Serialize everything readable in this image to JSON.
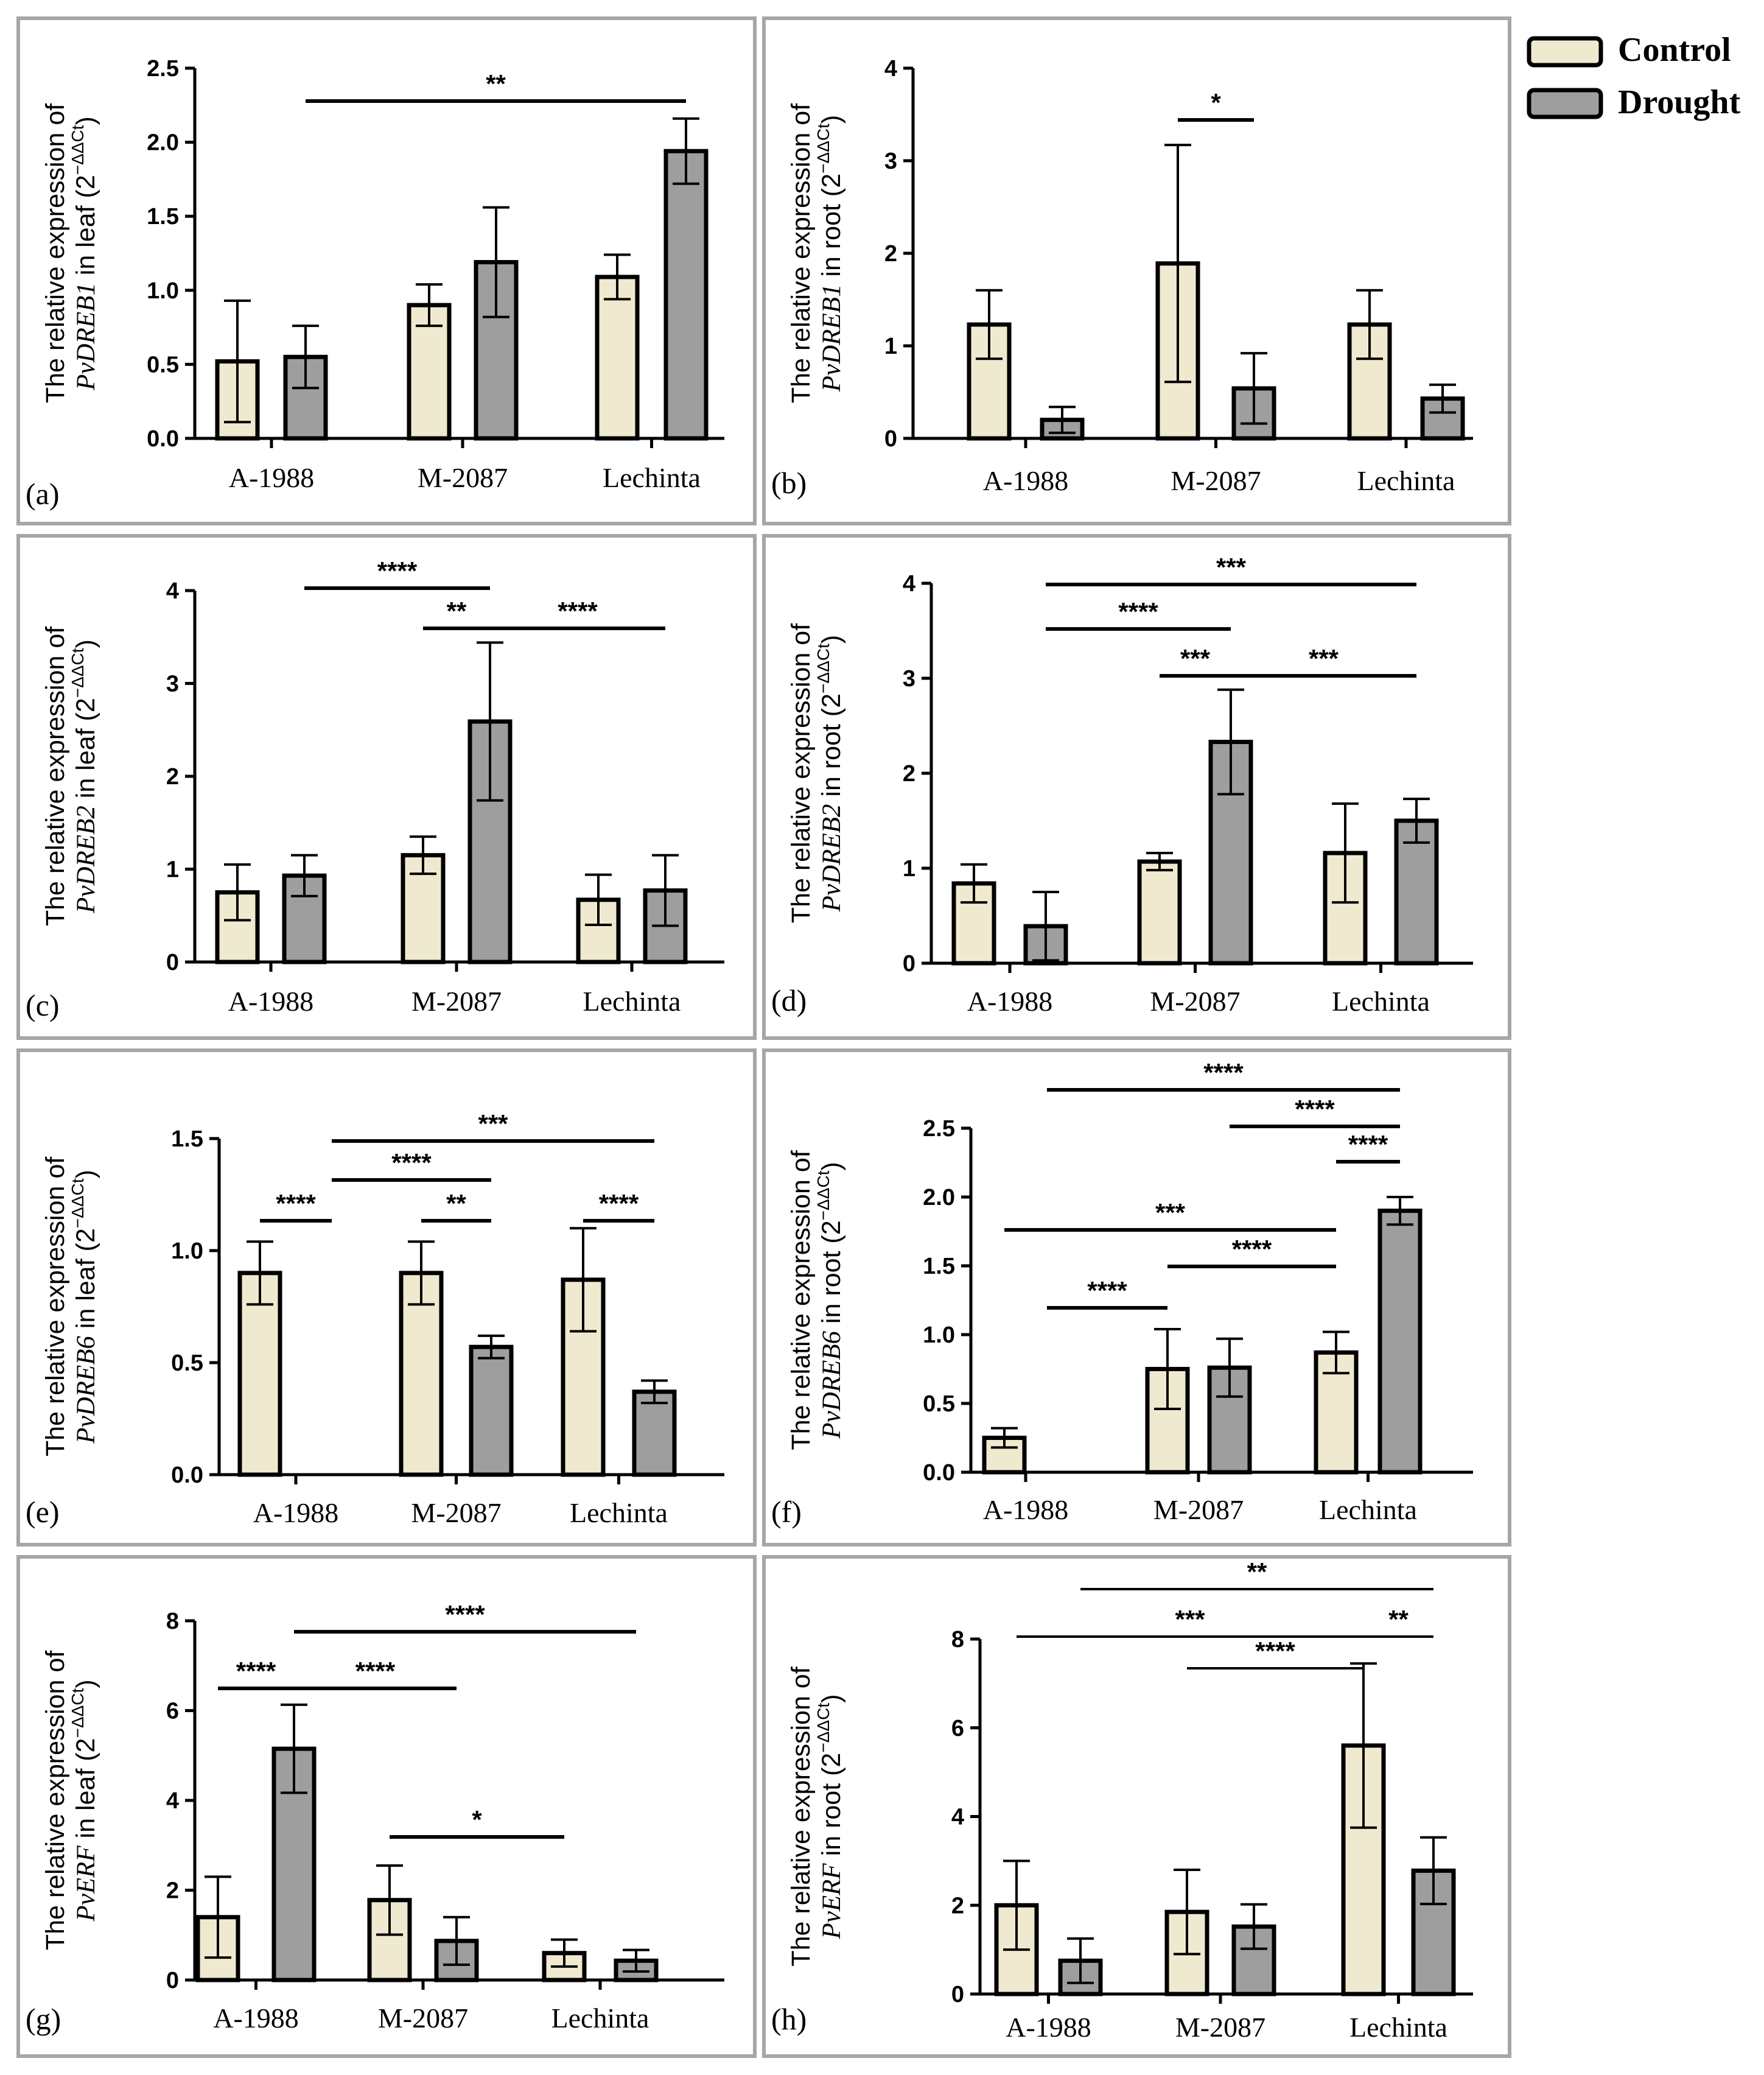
{
  "legend": [
    {
      "label": "Control",
      "color": "#efe9cf"
    },
    {
      "label": "Drought",
      "color": "#9e9e9e"
    }
  ],
  "chart_data": [
    {
      "panel": "(a)",
      "type": "bar",
      "categories": [
        "A-1988",
        "M-2087",
        "Lechinta"
      ],
      "ylabel": {
        "line1": "The relative expression of",
        "gene": "PvDREB1",
        "tissue": "leaf"
      },
      "ylim": [
        0,
        2.5
      ],
      "yticks": [
        "0.0",
        "0.5",
        "1.0",
        "1.5",
        "2.0",
        "2.5"
      ],
      "series": [
        {
          "name": "Control",
          "values": [
            0.52,
            0.9,
            1.09
          ],
          "errors": [
            0.41,
            0.14,
            0.15
          ]
        },
        {
          "name": "Drought",
          "values": [
            0.55,
            1.19,
            1.94
          ],
          "errors": [
            0.21,
            0.37,
            0.22
          ]
        }
      ],
      "significance": [
        {
          "label": "**",
          "from": [
            0,
            1
          ],
          "to": [
            2,
            1
          ]
        }
      ]
    },
    {
      "panel": "(b)",
      "type": "bar",
      "categories": [
        "A-1988",
        "M-2087",
        "Lechinta"
      ],
      "ylabel": {
        "line1": "The relative expression of",
        "gene": "PvDREB1",
        "tissue": "root"
      },
      "ylim": [
        0,
        4
      ],
      "yticks": [
        "0",
        "1",
        "2",
        "3",
        "4"
      ],
      "series": [
        {
          "name": "Control",
          "values": [
            1.23,
            1.89,
            1.23
          ],
          "errors": [
            0.37,
            1.28,
            0.37
          ]
        },
        {
          "name": "Drought",
          "values": [
            0.2,
            0.54,
            0.43
          ],
          "errors": [
            0.14,
            0.38,
            0.15
          ]
        }
      ],
      "significance": [
        {
          "label": "*",
          "from": [
            1,
            0
          ],
          "to": [
            1,
            1
          ]
        }
      ]
    },
    {
      "panel": "(c)",
      "type": "bar",
      "categories": [
        "A-1988",
        "M-2087",
        "Lechinta"
      ],
      "ylabel": {
        "line1": "The relative expression of",
        "gene": "PvDREB2",
        "tissue": "leaf"
      },
      "ylim": [
        0,
        4
      ],
      "yticks": [
        "0",
        "1",
        "2",
        "3",
        "4"
      ],
      "series": [
        {
          "name": "Control",
          "values": [
            0.75,
            1.15,
            0.67
          ],
          "errors": [
            0.3,
            0.2,
            0.27
          ]
        },
        {
          "name": "Drought",
          "values": [
            0.93,
            2.59,
            0.77
          ],
          "errors": [
            0.22,
            0.85,
            0.38
          ]
        }
      ],
      "significance": [
        {
          "label": "****",
          "from": [
            0,
            1
          ],
          "to": [
            1,
            1
          ]
        },
        {
          "label": "**",
          "from": [
            1,
            0
          ],
          "to": [
            1,
            1
          ]
        },
        {
          "label": "****",
          "from": [
            1,
            1
          ],
          "to": [
            2,
            1
          ]
        }
      ]
    },
    {
      "panel": "(d)",
      "type": "bar",
      "categories": [
        "A-1988",
        "M-2087",
        "Lechinta"
      ],
      "ylabel": {
        "line1": "The relative expression of",
        "gene": "PvDREB2",
        "tissue": "root"
      },
      "ylim": [
        0,
        4
      ],
      "yticks": [
        "0",
        "1",
        "2",
        "3",
        "4"
      ],
      "series": [
        {
          "name": "Control",
          "values": [
            0.84,
            1.07,
            1.16
          ],
          "errors": [
            0.2,
            0.09,
            0.52
          ]
        },
        {
          "name": "Drought",
          "values": [
            0.39,
            2.33,
            1.5
          ],
          "errors": [
            0.36,
            0.55,
            0.23
          ]
        }
      ],
      "significance": [
        {
          "label": "***",
          "from": [
            0,
            1
          ],
          "to": [
            2,
            1
          ]
        },
        {
          "label": "****",
          "from": [
            0,
            1
          ],
          "to": [
            1,
            1
          ]
        },
        {
          "label": "***",
          "from": [
            1,
            0
          ],
          "to": [
            1,
            1
          ]
        },
        {
          "label": "***",
          "from": [
            1,
            1
          ],
          "to": [
            2,
            1
          ]
        }
      ]
    },
    {
      "panel": "(e)",
      "type": "bar",
      "categories": [
        "A-1988",
        "M-2087",
        "Lechinta"
      ],
      "ylabel": {
        "line1": "The relative expression of",
        "gene": "PvDREB6",
        "tissue": "leaf"
      },
      "ylim": [
        0,
        1.5
      ],
      "yticks": [
        "0.0",
        "0.5",
        "1.0",
        "1.5"
      ],
      "series": [
        {
          "name": "Control",
          "values": [
            0.9,
            0.9,
            0.87
          ],
          "errors": [
            0.14,
            0.14,
            0.23
          ]
        },
        {
          "name": "Drought",
          "values": [
            0,
            0.57,
            0.37
          ],
          "errors": [
            0,
            0.05,
            0.05
          ]
        }
      ],
      "significance": [
        {
          "label": "***",
          "from": [
            0,
            1
          ],
          "to": [
            2,
            1
          ]
        },
        {
          "label": "****",
          "from": [
            0,
            1
          ],
          "to": [
            1,
            1
          ]
        },
        {
          "label": "****",
          "from": [
            0,
            0
          ],
          "to": [
            0,
            1
          ]
        },
        {
          "label": "**",
          "from": [
            1,
            0
          ],
          "to": [
            1,
            1
          ]
        },
        {
          "label": "****",
          "from": [
            2,
            0
          ],
          "to": [
            2,
            1
          ]
        }
      ]
    },
    {
      "panel": "(f)",
      "type": "bar",
      "categories": [
        "A-1988",
        "M-2087",
        "Lechinta"
      ],
      "ylabel": {
        "line1": "The relative expression of",
        "gene": "PvDREB6",
        "tissue": "root"
      },
      "ylim": [
        0,
        2.5
      ],
      "yticks": [
        "0.0",
        "0.5",
        "1.0",
        "1.5",
        "2.0",
        "2.5"
      ],
      "series": [
        {
          "name": "Control",
          "values": [
            0.25,
            0.75,
            0.87
          ],
          "errors": [
            0.07,
            0.29,
            0.15
          ]
        },
        {
          "name": "Drought",
          "values": [
            0,
            0.76,
            1.9
          ],
          "errors": [
            0,
            0.21,
            0.1
          ]
        }
      ],
      "significance": [
        {
          "label": "****",
          "from": [
            0,
            1
          ],
          "to": [
            2,
            1
          ]
        },
        {
          "label": "****",
          "from": [
            1,
            1
          ],
          "to": [
            2,
            1
          ]
        },
        {
          "label": "****",
          "from": [
            2,
            0
          ],
          "to": [
            2,
            1
          ]
        },
        {
          "label": "***",
          "from": [
            0,
            0
          ],
          "to": [
            2,
            0
          ]
        },
        {
          "label": "****",
          "from": [
            1,
            0
          ],
          "to": [
            2,
            0
          ]
        },
        {
          "label": "****",
          "from": [
            0,
            1
          ],
          "to": [
            1,
            0
          ]
        }
      ]
    },
    {
      "panel": "(g)",
      "type": "bar",
      "categories": [
        "A-1988",
        "M-2087",
        "Lechinta"
      ],
      "ylabel": {
        "line1": "The relative expression of",
        "gene": "PvERF",
        "tissue": "leaf"
      },
      "ylim": [
        0,
        8
      ],
      "yticks": [
        "0",
        "2",
        "4",
        "6",
        "8"
      ],
      "series": [
        {
          "name": "Control",
          "values": [
            1.4,
            1.78,
            0.6
          ],
          "errors": [
            0.9,
            0.77,
            0.3
          ]
        },
        {
          "name": "Drought",
          "values": [
            5.15,
            0.87,
            0.43
          ],
          "errors": [
            0.98,
            0.53,
            0.24
          ]
        }
      ],
      "significance": [
        {
          "label": "****",
          "from": [
            0,
            1
          ],
          "to": [
            2,
            1
          ]
        },
        {
          "label": "****",
          "from": [
            0,
            0
          ],
          "to": [
            0,
            1
          ]
        },
        {
          "label": "****",
          "from": [
            0,
            1
          ],
          "to": [
            1,
            1
          ]
        },
        {
          "label": "*",
          "from": [
            1,
            0
          ],
          "to": [
            2,
            0
          ]
        }
      ]
    },
    {
      "panel": "(h)",
      "type": "bar",
      "categories": [
        "A-1988",
        "M-2087",
        "Lechinta"
      ],
      "ylabel": {
        "line1": "The relative expression of",
        "gene": "PvERF",
        "tissue": "root"
      },
      "ylim": [
        0,
        8
      ],
      "yticks": [
        "0",
        "2",
        "4",
        "6",
        "8"
      ],
      "series": [
        {
          "name": "Control",
          "values": [
            2.0,
            1.85,
            5.6
          ],
          "errors": [
            1.0,
            0.95,
            1.85
          ]
        },
        {
          "name": "Drought",
          "values": [
            0.75,
            1.52,
            2.78
          ],
          "errors": [
            0.5,
            0.5,
            0.75
          ]
        }
      ],
      "significance": [
        {
          "label": "**",
          "from": [
            0,
            1
          ],
          "to": [
            2,
            1
          ]
        },
        {
          "label": "***",
          "from": [
            0,
            0
          ],
          "to": [
            2,
            0
          ]
        },
        {
          "label": "**",
          "from": [
            2,
            0
          ],
          "to": [
            2,
            1
          ]
        },
        {
          "label": "****",
          "from": [
            1,
            0
          ],
          "to": [
            2,
            0
          ]
        }
      ]
    }
  ]
}
